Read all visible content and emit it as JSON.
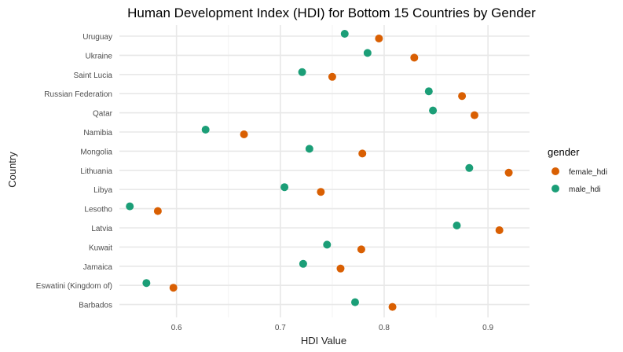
{
  "chart_data": {
    "type": "scatter",
    "title": "Human Development Index (HDI) for Bottom 15 Countries by Gender",
    "xlabel": "HDI Value",
    "ylabel": "Country",
    "xlim": [
      0.545,
      0.94
    ],
    "xticks": [
      0.6,
      0.7,
      0.8,
      0.9
    ],
    "xtick_labels": [
      "0.6",
      "0.7",
      "0.8",
      "0.9"
    ],
    "grid": true,
    "legend": {
      "title": "gender",
      "position": "right"
    },
    "categories": [
      "Uruguay",
      "Ukraine",
      "Saint Lucia",
      "Russian Federation",
      "Qatar",
      "Namibia",
      "Mongolia",
      "Lithuania",
      "Libya",
      "Lesotho",
      "Latvia",
      "Kuwait",
      "Jamaica",
      "Eswatini (Kingdom of)",
      "Barbados"
    ],
    "series": [
      {
        "name": "female_hdi",
        "color": "#D95F02",
        "values": [
          0.795,
          0.829,
          0.75,
          0.875,
          0.887,
          0.665,
          0.779,
          0.92,
          0.739,
          0.582,
          0.911,
          0.778,
          0.758,
          0.597,
          0.808
        ]
      },
      {
        "name": "male_hdi",
        "color": "#1B9E77",
        "values": [
          0.762,
          0.784,
          0.721,
          0.843,
          0.847,
          0.628,
          0.728,
          0.882,
          0.704,
          0.555,
          0.87,
          0.745,
          0.722,
          0.571,
          0.772
        ]
      }
    ]
  }
}
